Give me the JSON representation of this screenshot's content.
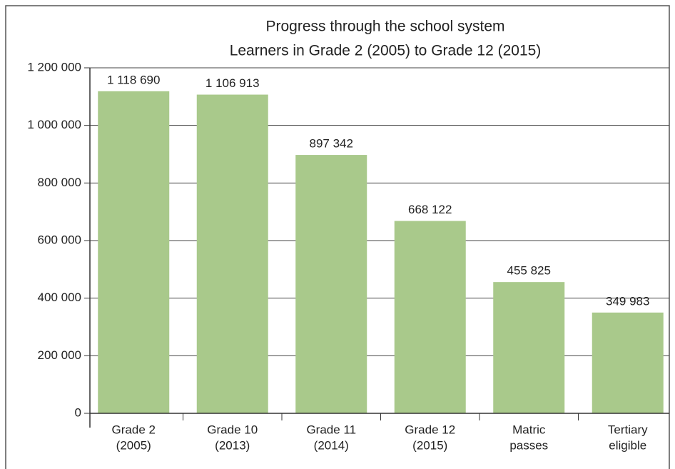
{
  "chart_data": {
    "type": "bar",
    "title": "Progress through the school system",
    "subtitle": "Learners in Grade 2 (2005) to Grade 12 (2015)",
    "categories": [
      [
        "Grade 2",
        "(2005)"
      ],
      [
        "Grade 10",
        "(2013)"
      ],
      [
        "Grade 11",
        "(2014)"
      ],
      [
        "Grade 12",
        "(2015)"
      ],
      [
        "Matric",
        "passes"
      ],
      [
        "Tertiary",
        "eligible"
      ]
    ],
    "values": [
      1118690,
      1106913,
      897342,
      668122,
      455825,
      349983
    ],
    "value_labels": [
      "1 118 690",
      "1 106 913",
      "897 342",
      "668 122",
      "455 825",
      "349 983"
    ],
    "color": "#a9c98b",
    "ylim": [
      0,
      1200000
    ],
    "yticks": [
      0,
      {
        "value": 200000,
        "label": "200 000"
      },
      {
        "value": 400000,
        "label": "400 000"
      },
      {
        "value": 600000,
        "label": "600 000"
      },
      {
        "value": 800000,
        "label": "800 000"
      },
      {
        "value": 1000000,
        "label": "1 000 000"
      },
      {
        "value": 1200000,
        "label": "1 200 000"
      }
    ],
    "grid": true
  }
}
